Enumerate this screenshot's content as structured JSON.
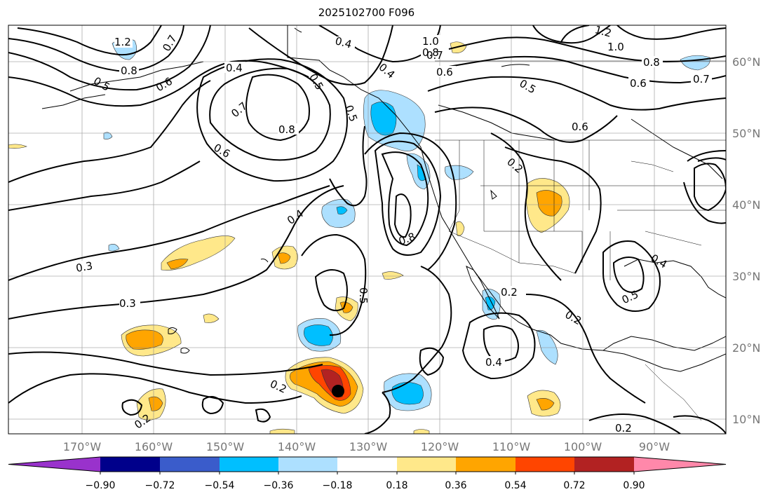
{
  "title": "2025102700 F096",
  "latitude_labels": [
    "60°N",
    "50°N",
    "40°N",
    "30°N",
    "20°N",
    "10°N"
  ],
  "longitude_labels": [
    "170°W",
    "160°W",
    "150°W",
    "140°W",
    "130°W",
    "120°W",
    "110°W",
    "100°W",
    "90°W"
  ],
  "contour_labels": [
    "1.2",
    "0.7",
    "0.8",
    "0.5",
    "0.6",
    "0.4",
    "0.7",
    "0.8",
    "0.6",
    "0.4",
    "0.5",
    "0.4",
    "0.5",
    "1.0",
    "0.8",
    "0.7",
    "0.6",
    "1.2",
    "1.0",
    "0.8",
    "0.6",
    "0.5",
    "0.7",
    "0.6",
    "0.2",
    "0.8",
    "0.4",
    "0.3",
    "0.3",
    "0.5",
    "0.2",
    "0.4",
    "0.2",
    "0.2",
    "0.5",
    "0.4",
    "0.2",
    "0.2"
  ],
  "colorbar": {
    "ticks": [
      "−0.90",
      "−0.72",
      "−0.54",
      "−0.36",
      "−0.18",
      "0.18",
      "0.36",
      "0.54",
      "0.72",
      "0.90"
    ],
    "colors": [
      "#9932CC",
      "#00008B",
      "#3A5CCB",
      "#00BFFF",
      "#ADE0FF",
      "#FFFFFF",
      "#FFE88A",
      "#FFA500",
      "#FF4500",
      "#B22222",
      "#FF88AA"
    ]
  },
  "marker": "storm-center"
}
